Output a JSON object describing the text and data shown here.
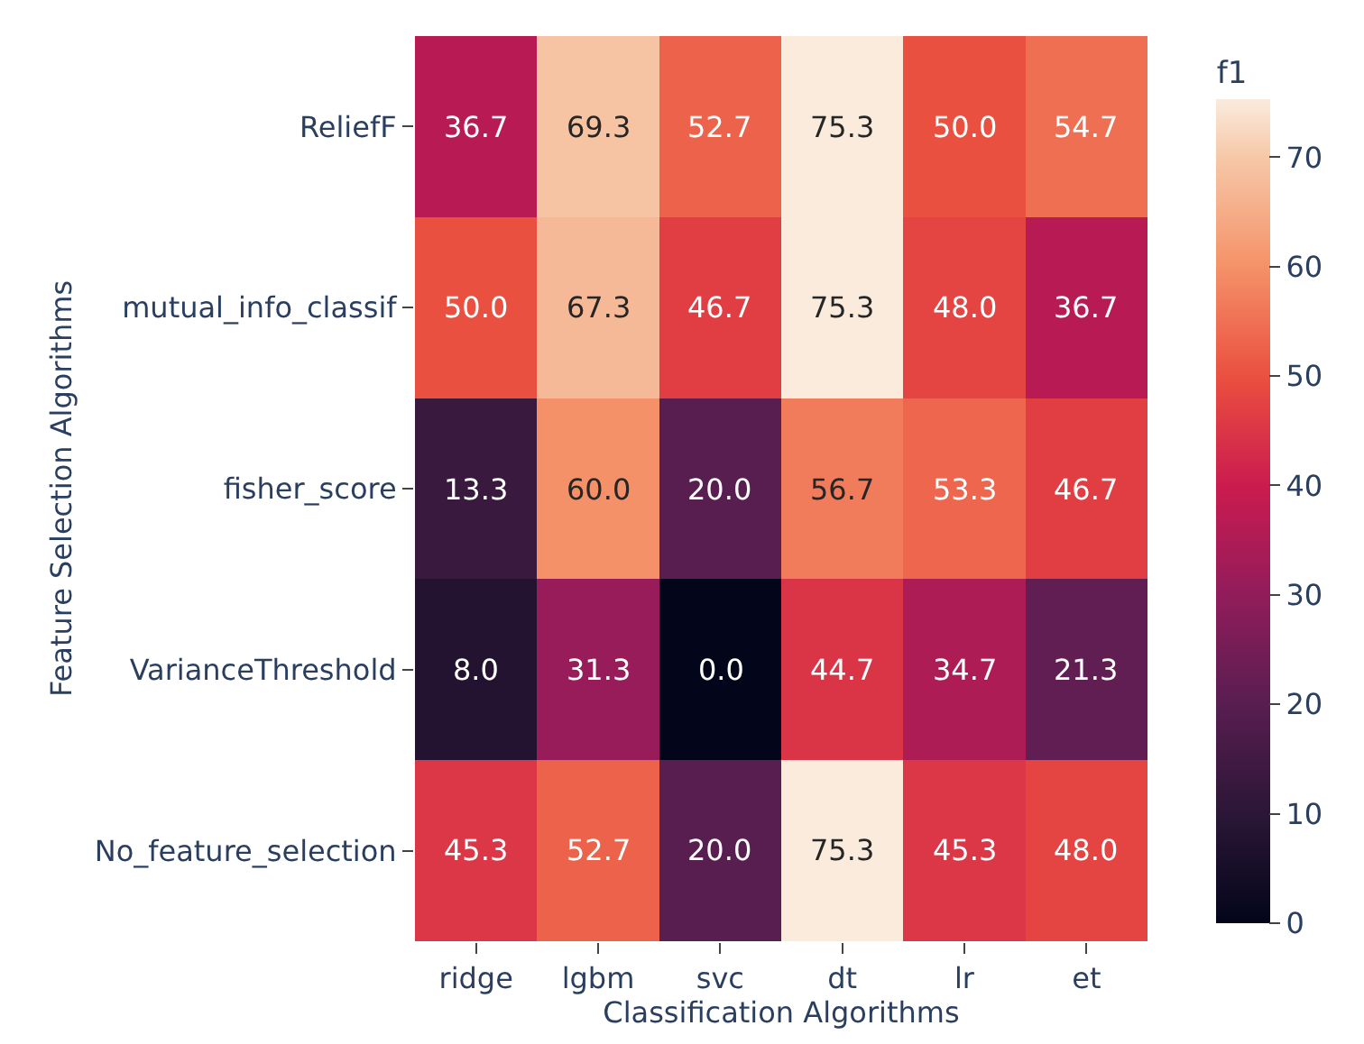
{
  "chart_data": {
    "type": "heatmap",
    "xlabel": "Classification Algorithms",
    "ylabel": "Feature Selection Algorithms",
    "clabel": "f1",
    "categories": [
      "ridge",
      "lgbm",
      "svc",
      "dt",
      "lr",
      "et"
    ],
    "y_categories": [
      "ReliefF",
      "mutual_info_classif",
      "fisher_score",
      "VarianceThreshold",
      "No_feature_selection"
    ],
    "cells": [
      [
        36.7,
        69.3,
        52.7,
        75.3,
        50.0,
        54.7
      ],
      [
        50.0,
        67.3,
        46.7,
        75.3,
        48.0,
        36.7
      ],
      [
        13.3,
        60.0,
        20.0,
        56.7,
        53.3,
        46.7
      ],
      [
        8.0,
        31.3,
        0.0,
        44.7,
        34.7,
        21.3
      ],
      [
        45.3,
        52.7,
        20.0,
        75.3,
        45.3,
        48.0
      ]
    ],
    "cell_labels": [
      [
        "36.7",
        "69.3",
        "52.7",
        "75.3",
        "50.0",
        "54.7"
      ],
      [
        "50.0",
        "67.3",
        "46.7",
        "75.3",
        "48.0",
        "36.7"
      ],
      [
        "13.3",
        "60.0",
        "20.0",
        "56.7",
        "53.3",
        "46.7"
      ],
      [
        "8.0",
        "31.3",
        "0.0",
        "44.7",
        "34.7",
        "21.3"
      ],
      [
        "45.3",
        "52.7",
        "20.0",
        "75.3",
        "45.3",
        "48.0"
      ]
    ],
    "clim": [
      0,
      75.3
    ],
    "cticks": [
      0,
      10,
      20,
      30,
      40,
      50,
      60,
      70
    ]
  }
}
